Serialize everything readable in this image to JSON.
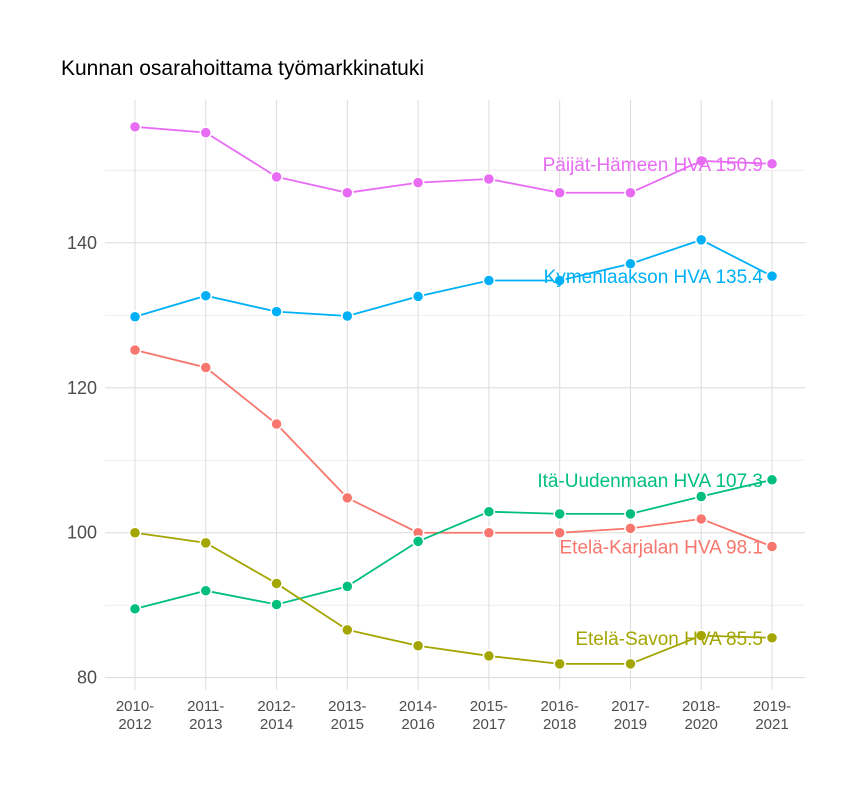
{
  "chart_data": {
    "type": "line",
    "title": "Kunnan osarahoittama työmarkkinatuki",
    "xlabel": "",
    "ylabel": "",
    "categories": [
      "2010-2012",
      "2011-2013",
      "2012-2014",
      "2013-2015",
      "2014-2016",
      "2015-2017",
      "2016-2018",
      "2017-2019",
      "2018-2020",
      "2019-2021"
    ],
    "ylim": [
      78.3,
      159.7
    ],
    "yticks": [
      80,
      100,
      120,
      140
    ],
    "grid": true,
    "legend": "none (direct end labels)",
    "series": [
      {
        "name": "Päijät-Hämeen HVA",
        "label": "Päijät-Hämeen HVA 150.9",
        "color": "#E76BF3",
        "values": [
          156.0,
          155.2,
          149.1,
          146.9,
          148.3,
          148.8,
          146.9,
          146.9,
          151.3,
          150.9
        ]
      },
      {
        "name": "Kymenlaakson HVA",
        "label": "Kymenlaakson HVA 135.4",
        "color": "#00B0F6",
        "values": [
          129.8,
          132.7,
          130.5,
          129.9,
          132.6,
          134.8,
          134.8,
          137.1,
          140.4,
          135.4
        ]
      },
      {
        "name": "Etelä-Karjalan HVA",
        "label": "Etelä-Karjalan HVA 98.1",
        "color": "#F8766D",
        "values": [
          125.2,
          122.8,
          115.0,
          104.8,
          100.0,
          100.0,
          100.0,
          100.6,
          101.9,
          98.1
        ]
      },
      {
        "name": "Itä-Uudenmaan HVA",
        "label": "Itä-Uudenmaan HVA 107.3",
        "color": "#00BF7D",
        "values": [
          89.5,
          92.0,
          90.1,
          92.6,
          98.8,
          102.9,
          102.6,
          102.6,
          105.0,
          107.3
        ]
      },
      {
        "name": "Etelä-Savon HVA",
        "label": "Etelä-Savon HVA 85.5",
        "color": "#A3A500",
        "values": [
          100.0,
          98.6,
          93.0,
          86.6,
          84.4,
          83.0,
          81.9,
          81.9,
          85.8,
          85.5
        ]
      }
    ]
  }
}
